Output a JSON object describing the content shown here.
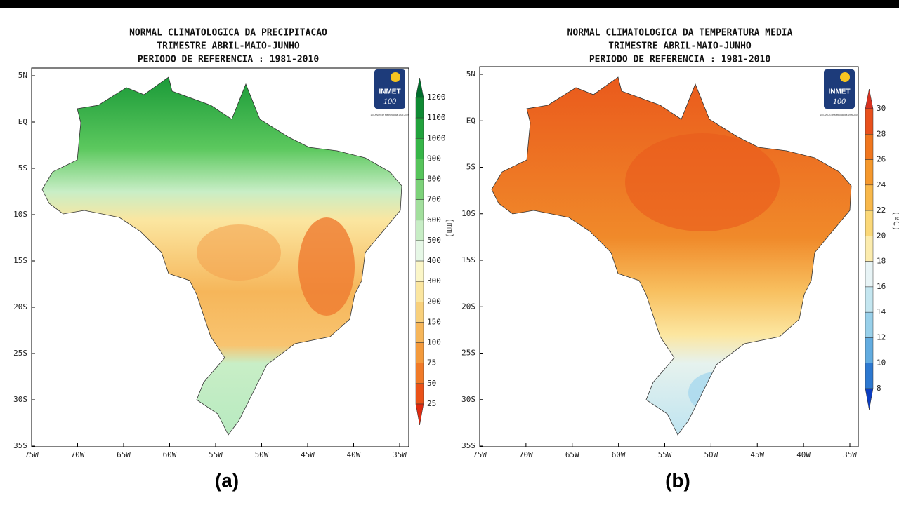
{
  "panels": [
    {
      "title": [
        "NORMAL CLIMATOLOGICA DA PRECIPITACAO",
        "TRIMESTRE ABRIL-MAIO-JUNHO",
        "PERIODO DE REFERENCIA : 1981-2010"
      ],
      "lat_labels": [
        "5N",
        "EQ",
        "5S",
        "10S",
        "15S",
        "20S",
        "25S",
        "30S",
        "35S"
      ],
      "lon_labels": [
        "75W",
        "70W",
        "65W",
        "60W",
        "55W",
        "50W",
        "45W",
        "40W",
        "35W"
      ],
      "colorbar": {
        "labels": [
          1200,
          1100,
          1000,
          900,
          800,
          700,
          600,
          500,
          400,
          300,
          200,
          150,
          100,
          75,
          50,
          25
        ],
        "colors": [
          "#006d2c",
          "#0f8a33",
          "#21a23c",
          "#36b648",
          "#56c45b",
          "#7cd279",
          "#a2df9d",
          "#c7edc5",
          "#e6f7e6",
          "#fbf6c8",
          "#fbe6a0",
          "#f8d07c",
          "#f6b65a",
          "#f39a3c",
          "#f07a28",
          "#ea5218",
          "#e02a10"
        ],
        "unit": "(mm)"
      },
      "logo": {
        "name": "INMET",
        "number": "100",
        "text": "100 ANOS de Meteorologia 1909-2009"
      },
      "caption": "(a)"
    },
    {
      "title": [
        "NORMAL CLIMATOLOGICA DA TEMPERATURA MEDIA",
        "TRIMESTRE ABRIL-MAIO-JUNHO",
        "PERIODO DE REFERENCIA : 1981-2010"
      ],
      "lat_labels": [
        "5N",
        "EQ",
        "5S",
        "10S",
        "15S",
        "20S",
        "25S",
        "30S",
        "35S"
      ],
      "lon_labels": [
        "75W",
        "70W",
        "65W",
        "60W",
        "55W",
        "50W",
        "45W",
        "40W",
        "35W"
      ],
      "colorbar": {
        "labels": [
          30,
          28,
          26,
          24,
          22,
          20,
          18,
          16,
          14,
          12,
          10,
          8
        ],
        "colors": [
          "#d7301f",
          "#e8501c",
          "#f0761e",
          "#f5982c",
          "#f8b84a",
          "#fbd878",
          "#fcecae",
          "#e8f4f6",
          "#c4e6f0",
          "#98d0ea",
          "#62ace0",
          "#2c78d0",
          "#0a3cc0"
        ],
        "unit": "(ºC)"
      },
      "logo": {
        "name": "INMET",
        "number": "100",
        "text": "100 ANOS de Meteorologia 1909-2009"
      },
      "caption": "(b)"
    }
  ]
}
